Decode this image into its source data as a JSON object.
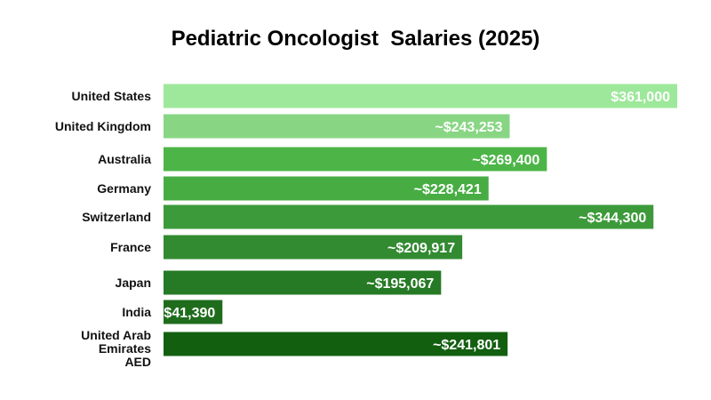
{
  "chart_data": {
    "type": "bar",
    "orientation": "horizontal",
    "title": "Pediatric Oncologist  Salaries (2025)",
    "xlabel": "",
    "ylabel": "",
    "grid": false,
    "xlim": [
      0,
      361000
    ],
    "categories": [
      "United States",
      "United Kingdom",
      "Australia",
      "Germany",
      "Switzerland",
      "France",
      "Japan",
      "India",
      "United Arab\nEmirates\nAED"
    ],
    "values": [
      361000,
      243253,
      269400,
      228421,
      344300,
      209917,
      195067,
      41390,
      241801
    ],
    "data_labels": [
      "$361,000",
      "~$243,253",
      "~$269,400",
      "~$228,421",
      "~$344,300",
      "~$209,917",
      "~$195,067",
      "~$41,390",
      "~$241,801"
    ],
    "bar_colors": [
      "#9de89a",
      "#88d683",
      "#4db548",
      "#47ad43",
      "#3d9a3a",
      "#328a31",
      "#267a25",
      "#1f6c1c",
      "#135f10"
    ]
  }
}
